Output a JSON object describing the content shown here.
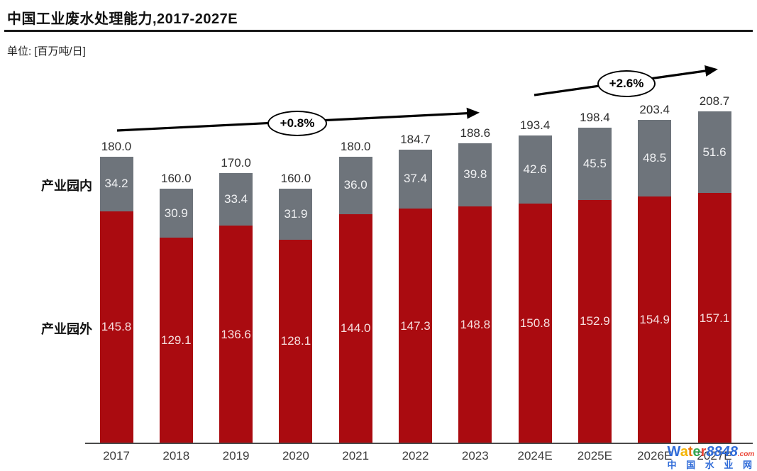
{
  "header": {
    "title": "中国工业废水处理能力,2017-2027E",
    "unit_label": "单位: [百万吨/日]"
  },
  "annotations": {
    "arrow1_label": "+0.8%",
    "arrow2_label": "+2.6%"
  },
  "chart_data": {
    "type": "bar",
    "stacked": true,
    "title": "中国工业废水处理能力,2017-2027E",
    "unit": "百万吨/日",
    "categories": [
      "2017",
      "2018",
      "2019",
      "2020",
      "2021",
      "2022",
      "2023",
      "2024E",
      "2025E",
      "2026E",
      "2027E"
    ],
    "series": [
      {
        "name": "产业园外",
        "color": "#aa0b10",
        "values": [
          145.8,
          129.1,
          136.6,
          128.1,
          144.0,
          147.3,
          148.8,
          150.8,
          152.9,
          154.9,
          157.1
        ]
      },
      {
        "name": "产业园内",
        "color": "#6e747b",
        "values": [
          34.2,
          30.9,
          33.4,
          31.9,
          36.0,
          37.4,
          39.8,
          42.6,
          45.5,
          48.5,
          51.6
        ]
      }
    ],
    "totals": [
      180.0,
      160.0,
      170.0,
      160.0,
      180.0,
      184.7,
      188.6,
      193.4,
      198.4,
      203.4,
      208.7
    ],
    "growth_annotations": [
      {
        "label": "+0.8%",
        "span": [
          "2017",
          "2023"
        ]
      },
      {
        "label": "+2.6%",
        "span": [
          "2024E",
          "2027E"
        ]
      }
    ],
    "legend_position": "left-of-first-bar",
    "grid": false,
    "value_labels": "on-segments-and-totals"
  },
  "watermark": {
    "brand_parts": [
      {
        "text": "W",
        "color": "#2f6bd8"
      },
      {
        "text": "a",
        "color": "#f4b400"
      },
      {
        "text": "t",
        "color": "#e8710a"
      },
      {
        "text": "e",
        "color": "#34a853"
      },
      {
        "text": "r",
        "color": "#ea4335"
      },
      {
        "text": "8848",
        "color": "#2f6bd8",
        "italic": true
      },
      {
        "text": ".com",
        "color": "#ea4335",
        "small": true
      }
    ],
    "tagline": "中 国 水 业 网",
    "tagline_color": "#2f6bd8"
  }
}
